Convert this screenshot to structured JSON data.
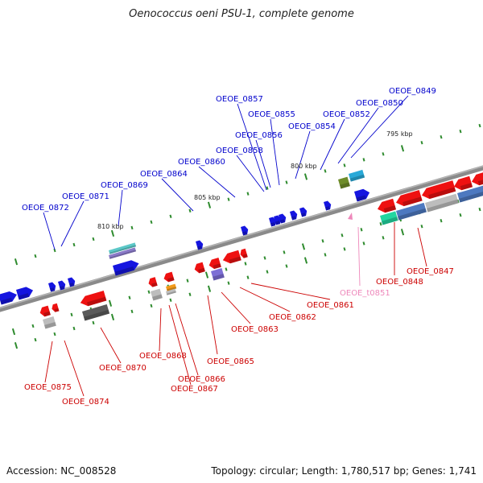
{
  "title": "Oenococcus oeni PSU-1, complete genome",
  "accession": "Accession: NC_008528",
  "topology": "Topology: circular; Length: 1,780,517 bp; Genes: 1,741",
  "colors": {
    "backbone": "#7f7f7f",
    "forward_label": "#0000cc",
    "reverse_label": "#cc0000",
    "trna_label": "#ee88bb",
    "tick": "#2e8b2e"
  },
  "scale_labels": [
    "795 kbp",
    "800 kbp",
    "805 kbp",
    "810 kbp"
  ],
  "forward_genes": [
    "OEOE_0849",
    "OEOE_0850",
    "OEOE_0852",
    "OEOE_0854",
    "OEOE_0855",
    "OEOE_0856",
    "OEOE_0857",
    "OEOE_0858",
    "OEOE_0860",
    "OEOE_0864",
    "OEOE_0869",
    "OEOE_0871",
    "OEOE_0872"
  ],
  "reverse_genes": [
    "OEOE_0847",
    "OEOE_0848",
    "OEOE_0861",
    "OEOE_0862",
    "OEOE_0863",
    "OEOE_0865",
    "OEOE_0866",
    "OEOE_0867",
    "OEOE_0868",
    "OEOE_0870",
    "OEOE_0874",
    "OEOE_0875"
  ],
  "trna_genes": [
    "OEOE_t0851"
  ]
}
